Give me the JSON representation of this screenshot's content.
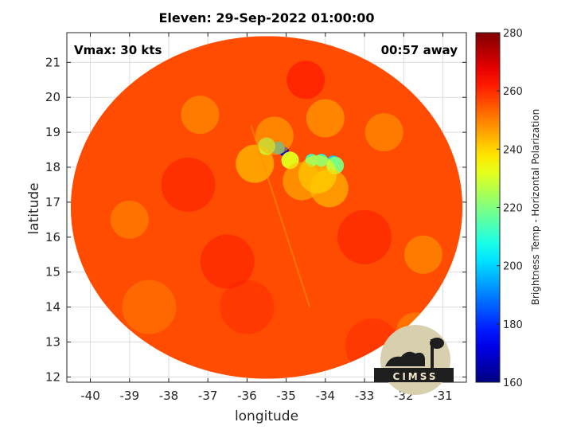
{
  "chart_data": {
    "type": "heatmap",
    "title": "Eleven: 29-Sep-2022 01:00:00",
    "xlabel": "longitude",
    "ylabel": "latitude",
    "xlim": [
      -40.6,
      -30.4
    ],
    "ylim": [
      11.85,
      21.85
    ],
    "x_ticks": [
      -40,
      -39,
      -38,
      -37,
      -36,
      -35,
      -34,
      -33,
      -32,
      -31
    ],
    "y_ticks": [
      12,
      13,
      14,
      15,
      16,
      17,
      18,
      19,
      20,
      21
    ],
    "grid": true,
    "annotations": {
      "left": "Vmax: 30 kts",
      "right": "00:57 away"
    },
    "colorbar": {
      "label": "Brightness Temp - Horizontal Polarization",
      "range": [
        160,
        280
      ],
      "ticks": [
        160,
        180,
        200,
        220,
        240,
        260,
        280
      ],
      "colormap": "jet"
    },
    "swath": {
      "center_lon": -35.5,
      "center_lat": 16.85,
      "radius_lon": 5.0,
      "radius_lat": 4.9
    },
    "background_tb": 256,
    "features": [
      {
        "lon": -35.05,
        "lat": 18.45,
        "tb": 168
      },
      {
        "lon": -35.2,
        "lat": 18.55,
        "tb": 196
      },
      {
        "lon": -35.5,
        "lat": 18.6,
        "tb": 222
      },
      {
        "lon": -33.8,
        "lat": 18.15,
        "tb": 200
      },
      {
        "lon": -34.1,
        "lat": 18.2,
        "tb": 208
      },
      {
        "lon": -34.35,
        "lat": 18.2,
        "tb": 212
      },
      {
        "lon": -33.75,
        "lat": 18.05,
        "tb": 220
      },
      {
        "lon": -34.9,
        "lat": 18.2,
        "tb": 232
      },
      {
        "lon": -34.2,
        "lat": 17.8,
        "tb": 236
      },
      {
        "lon": -35.8,
        "lat": 18.1,
        "tb": 238
      },
      {
        "lon": -33.9,
        "lat": 17.4,
        "tb": 240
      },
      {
        "lon": -34.6,
        "lat": 17.6,
        "tb": 242
      },
      {
        "lon": -35.3,
        "lat": 18.9,
        "tb": 244
      },
      {
        "lon": -34.0,
        "lat": 19.4,
        "tb": 244
      },
      {
        "lon": -37.2,
        "lat": 19.5,
        "tb": 246
      },
      {
        "lon": -32.5,
        "lat": 19.0,
        "tb": 246
      },
      {
        "lon": -39.0,
        "lat": 16.5,
        "tb": 248
      },
      {
        "lon": -31.5,
        "lat": 15.5,
        "tb": 246
      },
      {
        "lon": -38.5,
        "lat": 14.0,
        "tb": 250
      },
      {
        "lon": -31.7,
        "lat": 13.3,
        "tb": 248
      },
      {
        "lon": -36.0,
        "lat": 14.0,
        "tb": 260
      },
      {
        "lon": -37.5,
        "lat": 17.5,
        "tb": 262
      },
      {
        "lon": -33.0,
        "lat": 16.0,
        "tb": 262
      },
      {
        "lon": -34.5,
        "lat": 20.5,
        "tb": 264
      },
      {
        "lon": -36.5,
        "lat": 15.3,
        "tb": 262
      },
      {
        "lon": -32.8,
        "lat": 12.9,
        "tb": 260
      }
    ]
  },
  "logo": {
    "text": "CIMSS"
  }
}
